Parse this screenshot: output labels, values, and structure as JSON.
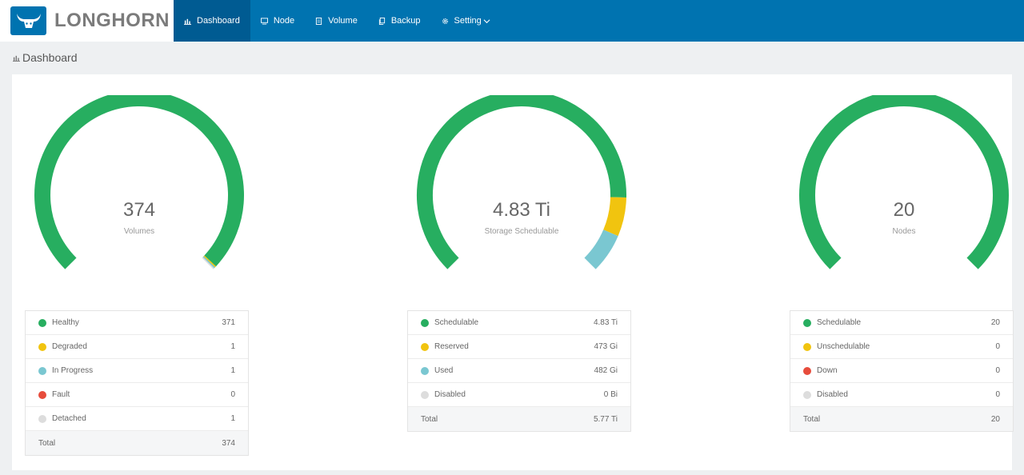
{
  "app": {
    "name": "LONGHORN"
  },
  "nav": {
    "items": [
      {
        "label": "Dashboard",
        "icon": "bar-chart-icon"
      },
      {
        "label": "Node",
        "icon": "monitor-icon"
      },
      {
        "label": "Volume",
        "icon": "database-icon"
      },
      {
        "label": "Backup",
        "icon": "copy-icon"
      },
      {
        "label": "Setting",
        "icon": "gear-icon"
      }
    ]
  },
  "breadcrumb": {
    "title": "Dashboard"
  },
  "colors": {
    "primary": "#0073b0",
    "primary_active": "#005b92",
    "healthy": "#27ae60",
    "degraded": "#f1c40f",
    "in_progress": "#7ac7d1",
    "fault": "#e74c3c",
    "disabled": "#dddddd"
  },
  "volumes": {
    "value": "374",
    "label": "Volumes",
    "rows": [
      {
        "name": "Healthy",
        "value": "371",
        "color": "#27ae60",
        "amount": 371
      },
      {
        "name": "Degraded",
        "value": "1",
        "color": "#f1c40f",
        "amount": 1
      },
      {
        "name": "In Progress",
        "value": "1",
        "color": "#7ac7d1",
        "amount": 1
      },
      {
        "name": "Fault",
        "value": "0",
        "color": "#e74c3c",
        "amount": 0
      },
      {
        "name": "Detached",
        "value": "1",
        "color": "#dddddd",
        "amount": 1
      }
    ],
    "total_label": "Total",
    "total_value": "374"
  },
  "storage": {
    "value": "4.83 Ti",
    "label": "Storage Schedulable",
    "rows": [
      {
        "name": "Schedulable",
        "value": "4.83 Ti",
        "color": "#27ae60",
        "amount": 4946
      },
      {
        "name": "Reserved",
        "value": "473 Gi",
        "color": "#f1c40f",
        "amount": 473
      },
      {
        "name": "Used",
        "value": "482 Gi",
        "color": "#7ac7d1",
        "amount": 482
      },
      {
        "name": "Disabled",
        "value": "0 Bi",
        "color": "#dddddd",
        "amount": 0
      }
    ],
    "total_label": "Total",
    "total_value": "5.77 Ti"
  },
  "nodes": {
    "value": "20",
    "label": "Nodes",
    "rows": [
      {
        "name": "Schedulable",
        "value": "20",
        "color": "#27ae60",
        "amount": 20
      },
      {
        "name": "Unschedulable",
        "value": "0",
        "color": "#f1c40f",
        "amount": 0
      },
      {
        "name": "Down",
        "value": "0",
        "color": "#e74c3c",
        "amount": 0
      },
      {
        "name": "Disabled",
        "value": "0",
        "color": "#dddddd",
        "amount": 0
      }
    ],
    "total_label": "Total",
    "total_value": "20"
  }
}
